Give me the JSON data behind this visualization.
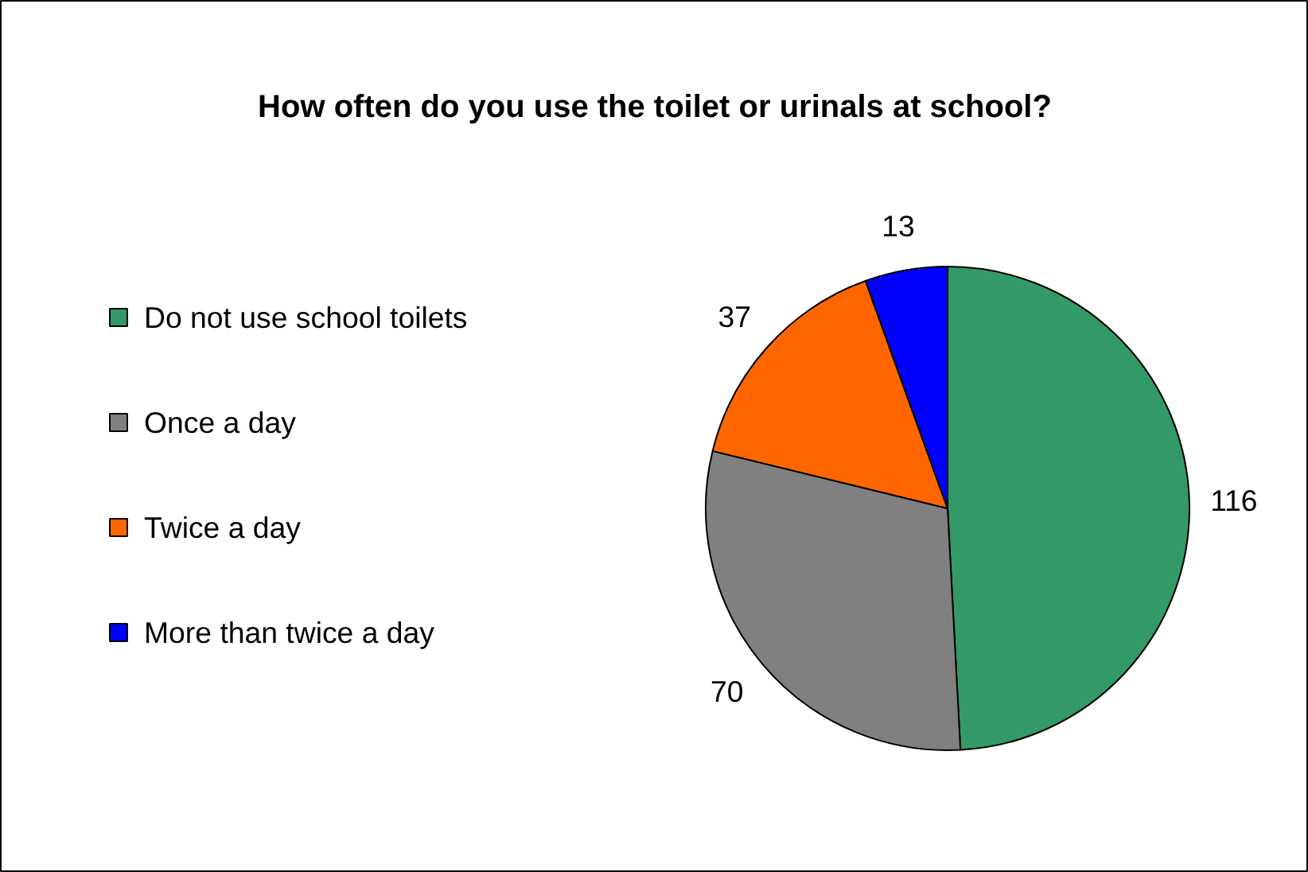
{
  "chart_data": {
    "type": "pie",
    "title": "How often do you use the toilet or urinals at school?",
    "categories": [
      "Do not use school toilets",
      "Once a day",
      "Twice a day",
      "More than twice a day"
    ],
    "values": [
      116,
      70,
      37,
      13
    ],
    "colors": [
      "#339966",
      "#808080",
      "#ff6600",
      "#0000ff"
    ],
    "data_labels": true,
    "legend": "left"
  }
}
